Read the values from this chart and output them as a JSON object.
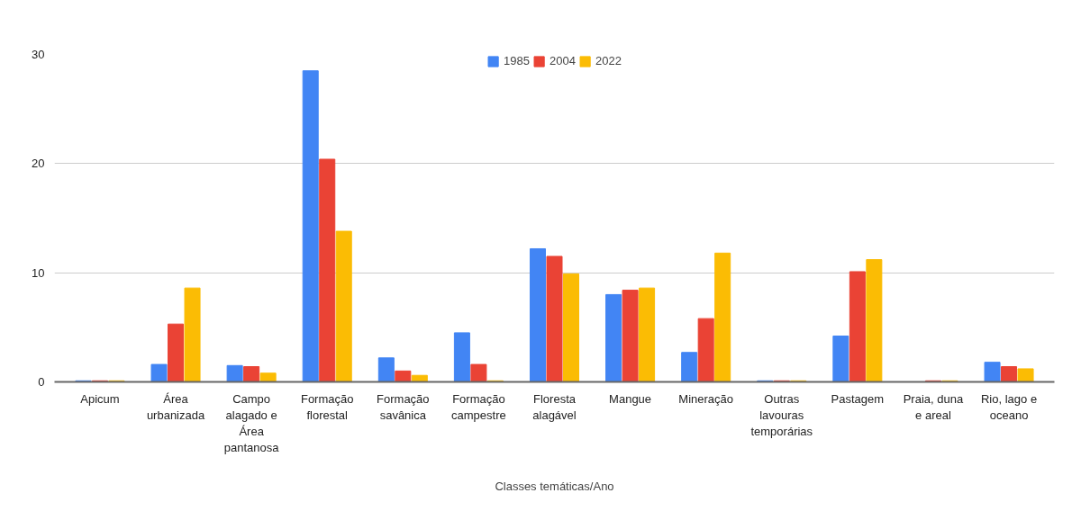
{
  "chart_data": {
    "type": "bar",
    "xlabel": "Classes temáticas/Ano",
    "categories": [
      "Apicum",
      "Área urbanizada",
      "Campo alagado e Área pantanosa",
      "Formação florestal",
      "Formação savânica",
      "Formação campestre",
      "Floresta alagável",
      "Mangue",
      "Mineração",
      "Outras lavouras temporárias",
      "Pastagem",
      "Praia, duna e areal",
      "Rio, lago e oceano"
    ],
    "series": [
      {
        "name": "1985",
        "color": "#4285f4",
        "values": [
          0.1,
          1.6,
          1.5,
          28.5,
          2.2,
          4.5,
          12.2,
          8.0,
          2.7,
          0.1,
          4.2,
          null,
          1.8
        ]
      },
      {
        "name": "2004",
        "color": "#ea4335",
        "values": [
          0.1,
          5.3,
          1.4,
          20.4,
          1.0,
          1.6,
          11.5,
          8.4,
          5.8,
          0.1,
          10.1,
          0.1,
          1.4
        ]
      },
      {
        "name": "2022",
        "color": "#fbbc04",
        "values": [
          0.1,
          8.6,
          0.8,
          13.8,
          0.6,
          0.1,
          9.9,
          8.6,
          11.8,
          0.1,
          11.2,
          0.1,
          1.2
        ]
      }
    ],
    "ylim": [
      0,
      30
    ],
    "yticks": [
      0,
      10,
      20,
      30
    ],
    "grid": "y",
    "legend": "top"
  }
}
